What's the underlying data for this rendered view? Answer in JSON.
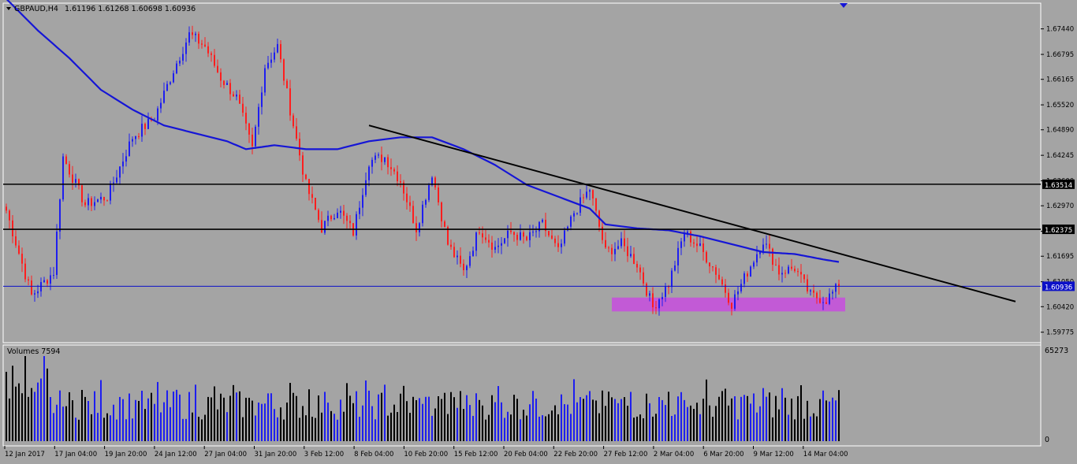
{
  "header": {
    "symbol": "GBPAUD,H4",
    "ohlc": "1.61196 1.61268 1.60698 1.60936"
  },
  "volume_panel": {
    "label": "Volumes 7594",
    "max_label": "65273",
    "min_label": "0"
  },
  "colors": {
    "background": "#a4a4a4",
    "bull": "#1e1ef0",
    "bear": "#ff1e1e",
    "ma": "#1515d6",
    "line": "#000000",
    "zone": "#c25ad6",
    "bid_line": "#0b10c8"
  },
  "chart_data": [
    {
      "type": "candlestick",
      "symbol": "GBPAUD",
      "timeframe": "H4",
      "y_ticks": [
        "1.67440",
        "1.66795",
        "1.66165",
        "1.65520",
        "1.64890",
        "1.64245",
        "1.63600",
        "1.62970",
        "1.62325",
        "1.61695",
        "1.61050",
        "1.60420",
        "1.59775"
      ],
      "ylim": [
        1.5955,
        1.6805
      ],
      "x_ticks": [
        "12 Jan 2017",
        "17 Jan 04:00",
        "19 Jan 20:00",
        "24 Jan 12:00",
        "27 Jan 04:00",
        "31 Jan 20:00",
        "3 Feb 12:00",
        "8 Feb 04:00",
        "10 Feb 20:00",
        "15 Feb 12:00",
        "20 Feb 04:00",
        "22 Feb 20:00",
        "27 Feb 12:00",
        "2 Mar 04:00",
        "6 Mar 20:00",
        "9 Mar 12:00",
        "14 Mar 04:00"
      ],
      "bar_count": 265,
      "close_anchors": [
        [
          0,
          1.6285
        ],
        [
          8,
          1.607
        ],
        [
          15,
          1.613
        ],
        [
          18,
          1.642
        ],
        [
          25,
          1.63
        ],
        [
          32,
          1.632
        ],
        [
          40,
          1.647
        ],
        [
          47,
          1.652
        ],
        [
          53,
          1.664
        ],
        [
          58,
          1.673
        ],
        [
          63,
          1.67
        ],
        [
          68,
          1.662
        ],
        [
          73,
          1.657
        ],
        [
          78,
          1.644
        ],
        [
          82,
          1.665
        ],
        [
          86,
          1.67
        ],
        [
          90,
          1.654
        ],
        [
          95,
          1.635
        ],
        [
          100,
          1.624
        ],
        [
          105,
          1.629
        ],
        [
          110,
          1.623
        ],
        [
          115,
          1.641
        ],
        [
          120,
          1.642
        ],
        [
          125,
          1.636
        ],
        [
          130,
          1.624
        ],
        [
          135,
          1.638
        ],
        [
          140,
          1.62
        ],
        [
          145,
          1.613
        ],
        [
          150,
          1.624
        ],
        [
          155,
          1.619
        ],
        [
          160,
          1.623
        ],
        [
          165,
          1.621
        ],
        [
          170,
          1.625
        ],
        [
          175,
          1.618
        ],
        [
          180,
          1.628
        ],
        [
          185,
          1.634
        ],
        [
          190,
          1.618
        ],
        [
          195,
          1.62
        ],
        [
          200,
          1.615
        ],
        [
          205,
          1.604
        ],
        [
          210,
          1.61
        ],
        [
          215,
          1.623
        ],
        [
          220,
          1.619
        ],
        [
          225,
          1.613
        ],
        [
          230,
          1.605
        ],
        [
          235,
          1.613
        ],
        [
          240,
          1.621
        ],
        [
          245,
          1.613
        ],
        [
          250,
          1.614
        ],
        [
          255,
          1.607
        ],
        [
          260,
          1.606
        ],
        [
          264,
          1.6094
        ]
      ],
      "moving_average": [
        [
          0,
          1.682
        ],
        [
          10,
          1.674
        ],
        [
          20,
          1.667
        ],
        [
          30,
          1.659
        ],
        [
          40,
          1.654
        ],
        [
          50,
          1.65
        ],
        [
          60,
          1.648
        ],
        [
          70,
          1.646
        ],
        [
          76,
          1.644
        ],
        [
          85,
          1.645
        ],
        [
          95,
          1.644
        ],
        [
          105,
          1.644
        ],
        [
          115,
          1.646
        ],
        [
          125,
          1.647
        ],
        [
          135,
          1.647
        ],
        [
          145,
          1.644
        ],
        [
          155,
          1.64
        ],
        [
          165,
          1.635
        ],
        [
          175,
          1.632
        ],
        [
          185,
          1.629
        ],
        [
          190,
          1.625
        ],
        [
          200,
          1.624
        ],
        [
          210,
          1.6235
        ],
        [
          220,
          1.622
        ],
        [
          230,
          1.62
        ],
        [
          240,
          1.618
        ],
        [
          250,
          1.6175
        ],
        [
          260,
          1.616
        ],
        [
          264,
          1.6155
        ]
      ],
      "horizontal_lines": [
        1.63514,
        1.62375
      ],
      "bid_line": 1.60936,
      "trendline": {
        "from": [
          115,
          1.65
        ],
        "to": [
          320,
          1.6055
        ]
      },
      "support_zone": {
        "x_start": 192,
        "x_end": 266,
        "y_low": 1.603,
        "y_high": 1.6065
      },
      "volume_max": 65273
    }
  ]
}
